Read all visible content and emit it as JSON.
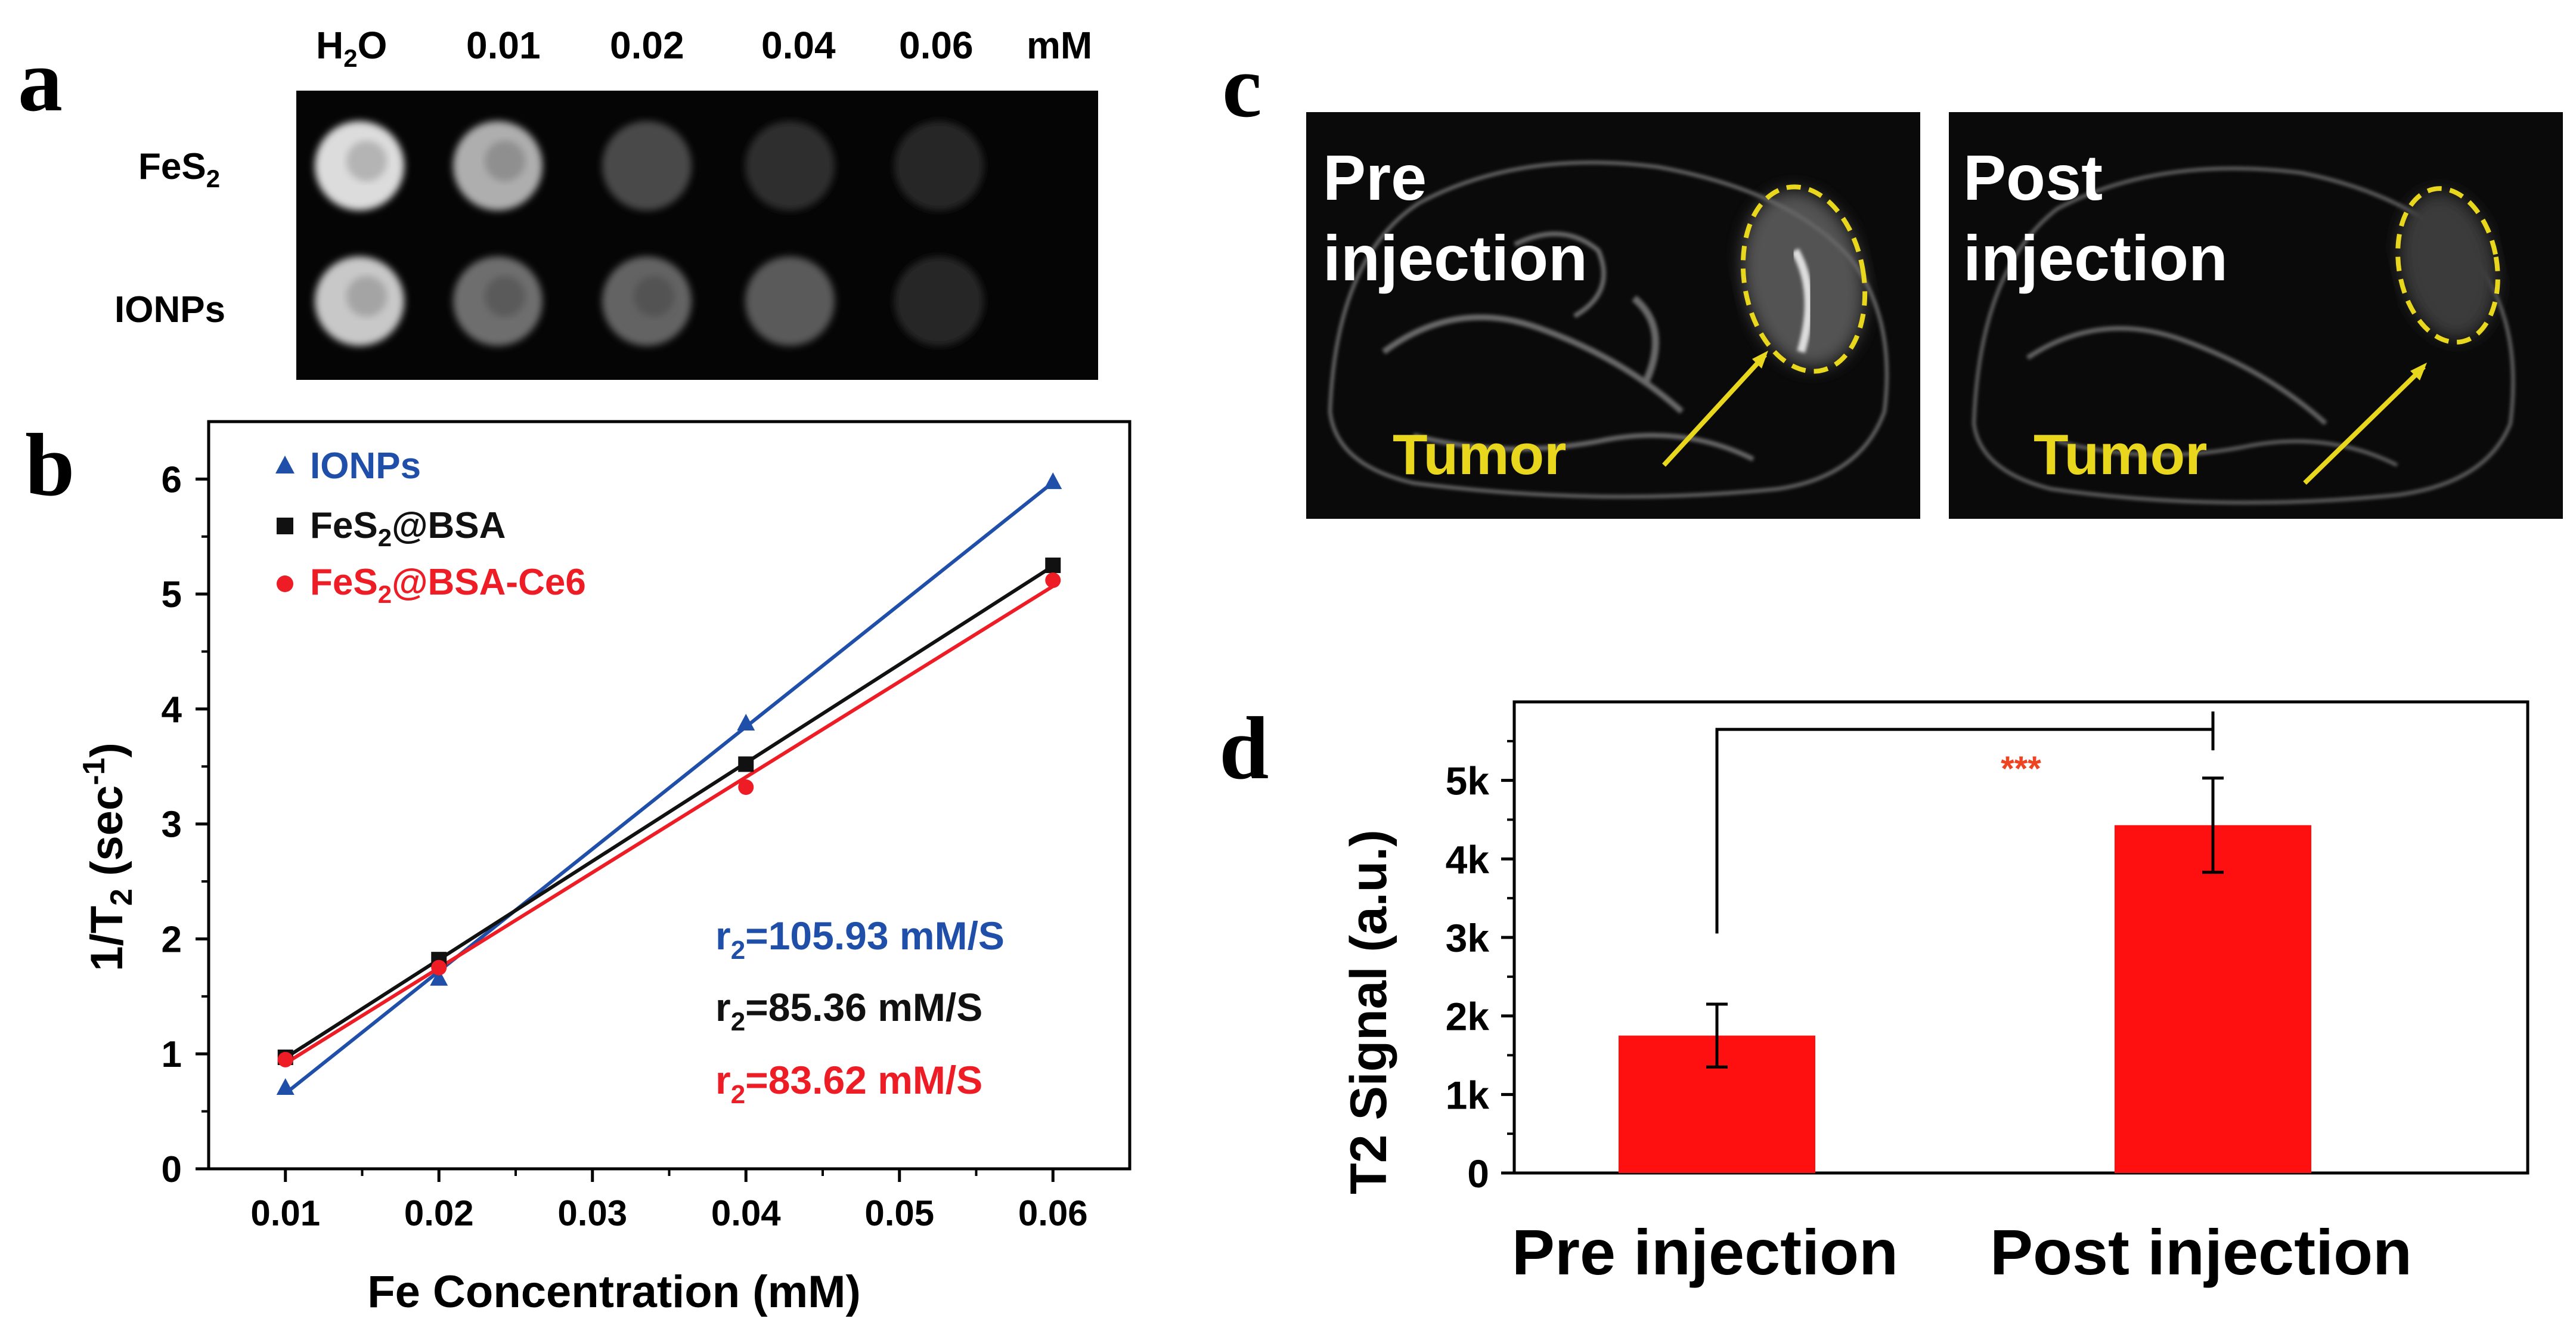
{
  "panels": {
    "a": "a",
    "b": "b",
    "c": "c",
    "d": "d"
  },
  "panel_a": {
    "columns": [
      "H",
      "2",
      "O",
      "0.01",
      "0.02",
      "0.04",
      "0.06",
      "mM"
    ],
    "rows": [
      {
        "name": "FeS",
        "sub": "2",
        "intensities": [
          0.95,
          0.72,
          0.22,
          0.08,
          0.05
        ]
      },
      {
        "name": "IONPs",
        "sub": "",
        "intensities": [
          0.85,
          0.4,
          0.35,
          0.3,
          0.05
        ]
      }
    ]
  },
  "panel_c": {
    "images": [
      {
        "line1": "Pre",
        "line2": "injection",
        "tumor": "Tumor"
      },
      {
        "line1": "Post",
        "line2": "injection",
        "tumor": "Tumor"
      }
    ]
  },
  "chart_data": [
    {
      "type": "scatter",
      "title": "",
      "xlabel": "Fe Concentration (mM)",
      "ylabel_main": "1/T",
      "ylabel_sub": "2",
      "ylabel_unit": "(sec",
      "ylabel_sup": "-1",
      "ylabel_close": ")",
      "xlim": [
        0.005,
        0.065
      ],
      "ylim": [
        0,
        6.5
      ],
      "xticks": [
        "0.01",
        "0.02",
        "0.03",
        "0.04",
        "0.05",
        "0.06"
      ],
      "yticks": [
        "0",
        "1",
        "2",
        "3",
        "4",
        "5",
        "6"
      ],
      "series": [
        {
          "name": "IONPs",
          "name_main": "IONPs",
          "name_sub": "",
          "name_rest": "",
          "marker": "triangle",
          "color": "#1f4fa8",
          "x": [
            0.01,
            0.02,
            0.04,
            0.06
          ],
          "y": [
            0.7,
            1.65,
            3.87,
            5.97
          ]
        },
        {
          "name": "FeS2@BSA",
          "name_main": "FeS",
          "name_sub": "2",
          "name_rest": "@BSA",
          "marker": "square",
          "color": "#111111",
          "x": [
            0.01,
            0.02,
            0.04,
            0.06
          ],
          "y": [
            0.97,
            1.82,
            3.52,
            5.25
          ]
        },
        {
          "name": "FeS2@BSA-Ce6",
          "name_main": "FeS",
          "name_sub": "2",
          "name_rest": "@BSA-Ce6",
          "marker": "circle",
          "color": "#ee1c25",
          "x": [
            0.01,
            0.02,
            0.04,
            0.06
          ],
          "y": [
            0.95,
            1.75,
            3.32,
            5.12
          ]
        }
      ],
      "annotations": [
        {
          "main": "r",
          "sub": "2",
          "rest": "=105.93 mM/S",
          "color": "#1f4fa8"
        },
        {
          "main": "r",
          "sub": "2",
          "rest": "=85.36 mM/S",
          "color": "#111111"
        },
        {
          "main": "r",
          "sub": "2",
          "rest": "=83.62 mM/S",
          "color": "#ee1c25"
        }
      ]
    },
    {
      "type": "bar",
      "title": "",
      "xlabel": "",
      "ylabel": "T2 Signal (a.u.)",
      "categories": [
        "Pre injection",
        "Post injection"
      ],
      "values": [
        1750,
        4430
      ],
      "errors": [
        400,
        600
      ],
      "ylim": [
        0,
        6000
      ],
      "yticks": [
        {
          "value": 0,
          "label": "0"
        },
        {
          "value": 1000,
          "label": "1k"
        },
        {
          "value": 2000,
          "label": "2k"
        },
        {
          "value": 3000,
          "label": "3k"
        },
        {
          "value": 4000,
          "label": "4k"
        },
        {
          "value": 5000,
          "label": "5k"
        }
      ],
      "bar_color": "#ff1010",
      "significance": "***",
      "significance_color": "#ee4422"
    }
  ]
}
